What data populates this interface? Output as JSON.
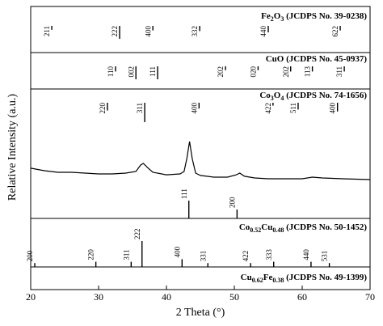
{
  "chart_data": [
    {
      "type": "stem",
      "title": [
        "Fe",
        "2",
        "O",
        "3",
        " (JCDPS No. 39-0238)"
      ],
      "x": [
        23.1,
        33.1,
        38.0,
        44.9,
        55.0,
        65.6
      ],
      "values": [
        30,
        100,
        35,
        40,
        50,
        35
      ],
      "labels": [
        "211",
        "222",
        "400",
        "332",
        "440",
        "622"
      ],
      "ylim": [
        0,
        100
      ],
      "xlim": [
        20,
        70
      ],
      "color": "#000000"
    },
    {
      "type": "stem",
      "title": [
        "CuO (JCDPS No. 45-0937)"
      ],
      "x": [
        32.5,
        35.5,
        38.7,
        48.7,
        53.5,
        58.3,
        61.5,
        66.2
      ],
      "values": [
        40,
        100,
        100,
        30,
        30,
        40,
        40,
        40
      ],
      "labels": [
        "110",
        "002",
        "111",
        "202",
        "020",
        "202",
        "113",
        "311"
      ],
      "ylim": [
        0,
        100
      ],
      "xlim": [
        20,
        70
      ],
      "color": "#000000"
    },
    {
      "type": "stem",
      "title": [
        "Co",
        "3",
        "O",
        "4",
        " (JCDPS No. 74-1656)"
      ],
      "x": [
        31.3,
        36.8,
        44.8,
        55.7,
        59.4,
        65.2
      ],
      "values": [
        40,
        100,
        30,
        15,
        35,
        45
      ],
      "labels": [
        "220",
        "311",
        "400",
        "422",
        "511",
        "400"
      ],
      "ylim": [
        0,
        100
      ],
      "xlim": [
        20,
        70
      ],
      "color": "#000000"
    },
    {
      "type": "line",
      "xlabel": "2 Theta (°)",
      "ylabel": "Relative Intensity (a.u.)",
      "x": [
        20,
        22,
        24,
        26,
        28,
        30,
        32,
        34,
        35.5,
        36.2,
        36.6,
        37.2,
        38,
        40,
        42,
        42.6,
        43.0,
        43.4,
        43.8,
        44.3,
        45,
        47,
        49,
        50.3,
        50.8,
        51.5,
        53,
        55,
        58,
        60,
        61.5,
        63,
        66,
        70
      ],
      "values": [
        42.8,
        40.7,
        39.3,
        39.3,
        38.6,
        37.9,
        37.9,
        38.6,
        40,
        45.5,
        46.9,
        43.4,
        39.3,
        37.2,
        37.9,
        40,
        51,
        65.5,
        51,
        38.6,
        36.6,
        35.2,
        35.2,
        37.2,
        38.6,
        35.9,
        34.5,
        33.8,
        33.8,
        33.8,
        35.2,
        34.5,
        33.8,
        33.1
      ],
      "color": "#000000",
      "xlim": [
        20,
        70
      ],
      "ylim": [
        0,
        100
      ],
      "xticks": [
        20,
        30,
        40,
        50,
        60,
        70
      ]
    },
    {
      "type": "stem",
      "x": [
        43.3,
        50.4
      ],
      "values": [
        100,
        50
      ],
      "labels": [
        "111",
        "200"
      ],
      "ylim": [
        0,
        100
      ],
      "xlim": [
        20,
        70
      ],
      "color": "#000000"
    },
    {
      "type": "stem",
      "title": [
        "Co",
        "0.52",
        "Cu",
        "0.48",
        " (JCDPS No. 50-1452)"
      ],
      "x": [
        20.6,
        29.6,
        34.8,
        36.4,
        42.3,
        46.1,
        52.4,
        55.8,
        61.3,
        64.0
      ],
      "values": [
        15,
        20,
        20,
        100,
        30,
        15,
        15,
        20,
        20,
        15
      ],
      "labels": [
        "200",
        "220",
        "311",
        "222",
        "400",
        "331",
        "422",
        "333",
        "440",
        "531"
      ],
      "ylim": [
        0,
        100
      ],
      "xlim": [
        20,
        70
      ],
      "color": "#000000"
    },
    {
      "type": "stem",
      "title": [
        "Cu",
        "0.62",
        "Fe",
        "0.38",
        " (JCDPS No. 49-1399)"
      ]
    }
  ]
}
